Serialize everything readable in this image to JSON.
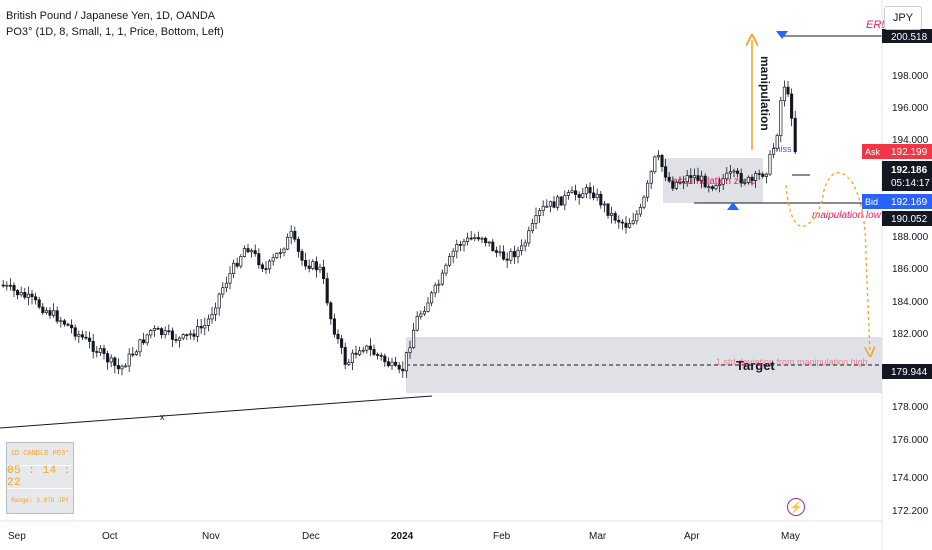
{
  "legend": {
    "title": "British Pound / Japanese Yen, 1D, OANDA",
    "indicator": "PO3° (1D, 8, Small, 1, 1, Price, Bottom, Left)"
  },
  "currency_button": "JPY",
  "price_axis": {
    "ticks": [
      "198.000",
      "196.000",
      "194.000",
      "188.000",
      "186.000",
      "184.000",
      "182.000",
      "178.000",
      "176.000",
      "174.000",
      "172.200"
    ],
    "labels": {
      "top": "200.518",
      "ask_tag": "Ask",
      "ask": "192.199",
      "last": "192.186",
      "countdown": "05:14:17",
      "bid_tag": "Bid",
      "bid": "192.169",
      "low": "190.052",
      "target": "179.944"
    }
  },
  "time_axis": [
    "Sep",
    "Oct",
    "Nov",
    "Dec",
    "2024",
    "Feb",
    "Mar",
    "Apr",
    "May"
  ],
  "annotations": {
    "erl": "ERL",
    "manipulation": "manipulation",
    "accumulation": "accumulation zone",
    "manipulation_low": "maipulation low",
    "target": "Target",
    "target_note": "1 std deviation from manipulation high",
    "miss": "miss",
    "x_mark": "x"
  },
  "po3_widget": {
    "title": "1D CANDLE PO3°",
    "timer": "05 : 14 : 22",
    "range": "Range: 3.878 JPY"
  },
  "colors": {
    "up": "#131722",
    "down": "#131722",
    "ask": "#f23645",
    "bid": "#2962ff",
    "annotation_orange": "#f7a21b",
    "annotation_red": "#e91e63",
    "zone": "#e0e1e6"
  }
}
